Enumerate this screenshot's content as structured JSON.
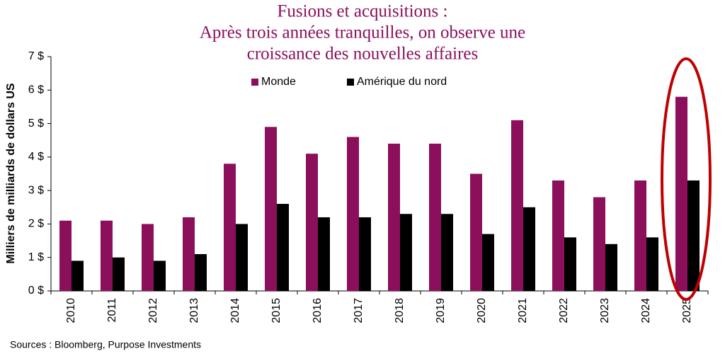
{
  "chart_data": {
    "type": "bar",
    "title": [
      "Fusions et acquisitions :",
      "Après trois années tranquilles, on observe une",
      "croissance des nouvelles affaires"
    ],
    "y_label": "Milliers de milliards de dollars US",
    "source": "Sources : Bloomberg, Purpose Investments",
    "categories": [
      "2010",
      "2011",
      "2012",
      "2013",
      "2014",
      "2015",
      "2016",
      "2017",
      "2018",
      "2019",
      "2020",
      "2021",
      "2022",
      "2023",
      "2024",
      "2025"
    ],
    "series": [
      {
        "name": "Monde",
        "color": "#8b0f5a",
        "values": [
          2.1,
          2.1,
          2.0,
          2.2,
          3.8,
          4.9,
          4.1,
          4.6,
          4.4,
          4.4,
          3.5,
          5.1,
          3.3,
          2.8,
          3.3,
          5.8
        ]
      },
      {
        "name": "Amérique du nord",
        "color": "#000000",
        "values": [
          0.9,
          1.0,
          0.9,
          1.1,
          2.0,
          2.6,
          2.2,
          2.2,
          2.3,
          2.3,
          1.7,
          2.5,
          1.6,
          1.4,
          1.6,
          3.3
        ]
      }
    ],
    "ylim": [
      0,
      7
    ],
    "yticks": [
      {
        "value": 0,
        "label": "0 $"
      },
      {
        "value": 1,
        "label": "1 $"
      },
      {
        "value": 2,
        "label": "2 $"
      },
      {
        "value": 3,
        "label": "3 $"
      },
      {
        "value": 4,
        "label": "4 $"
      },
      {
        "value": 5,
        "label": "5 $"
      },
      {
        "value": 6,
        "label": "6 $"
      },
      {
        "value": 7,
        "label": "7 $"
      }
    ],
    "grid": false,
    "legend": "top"
  }
}
